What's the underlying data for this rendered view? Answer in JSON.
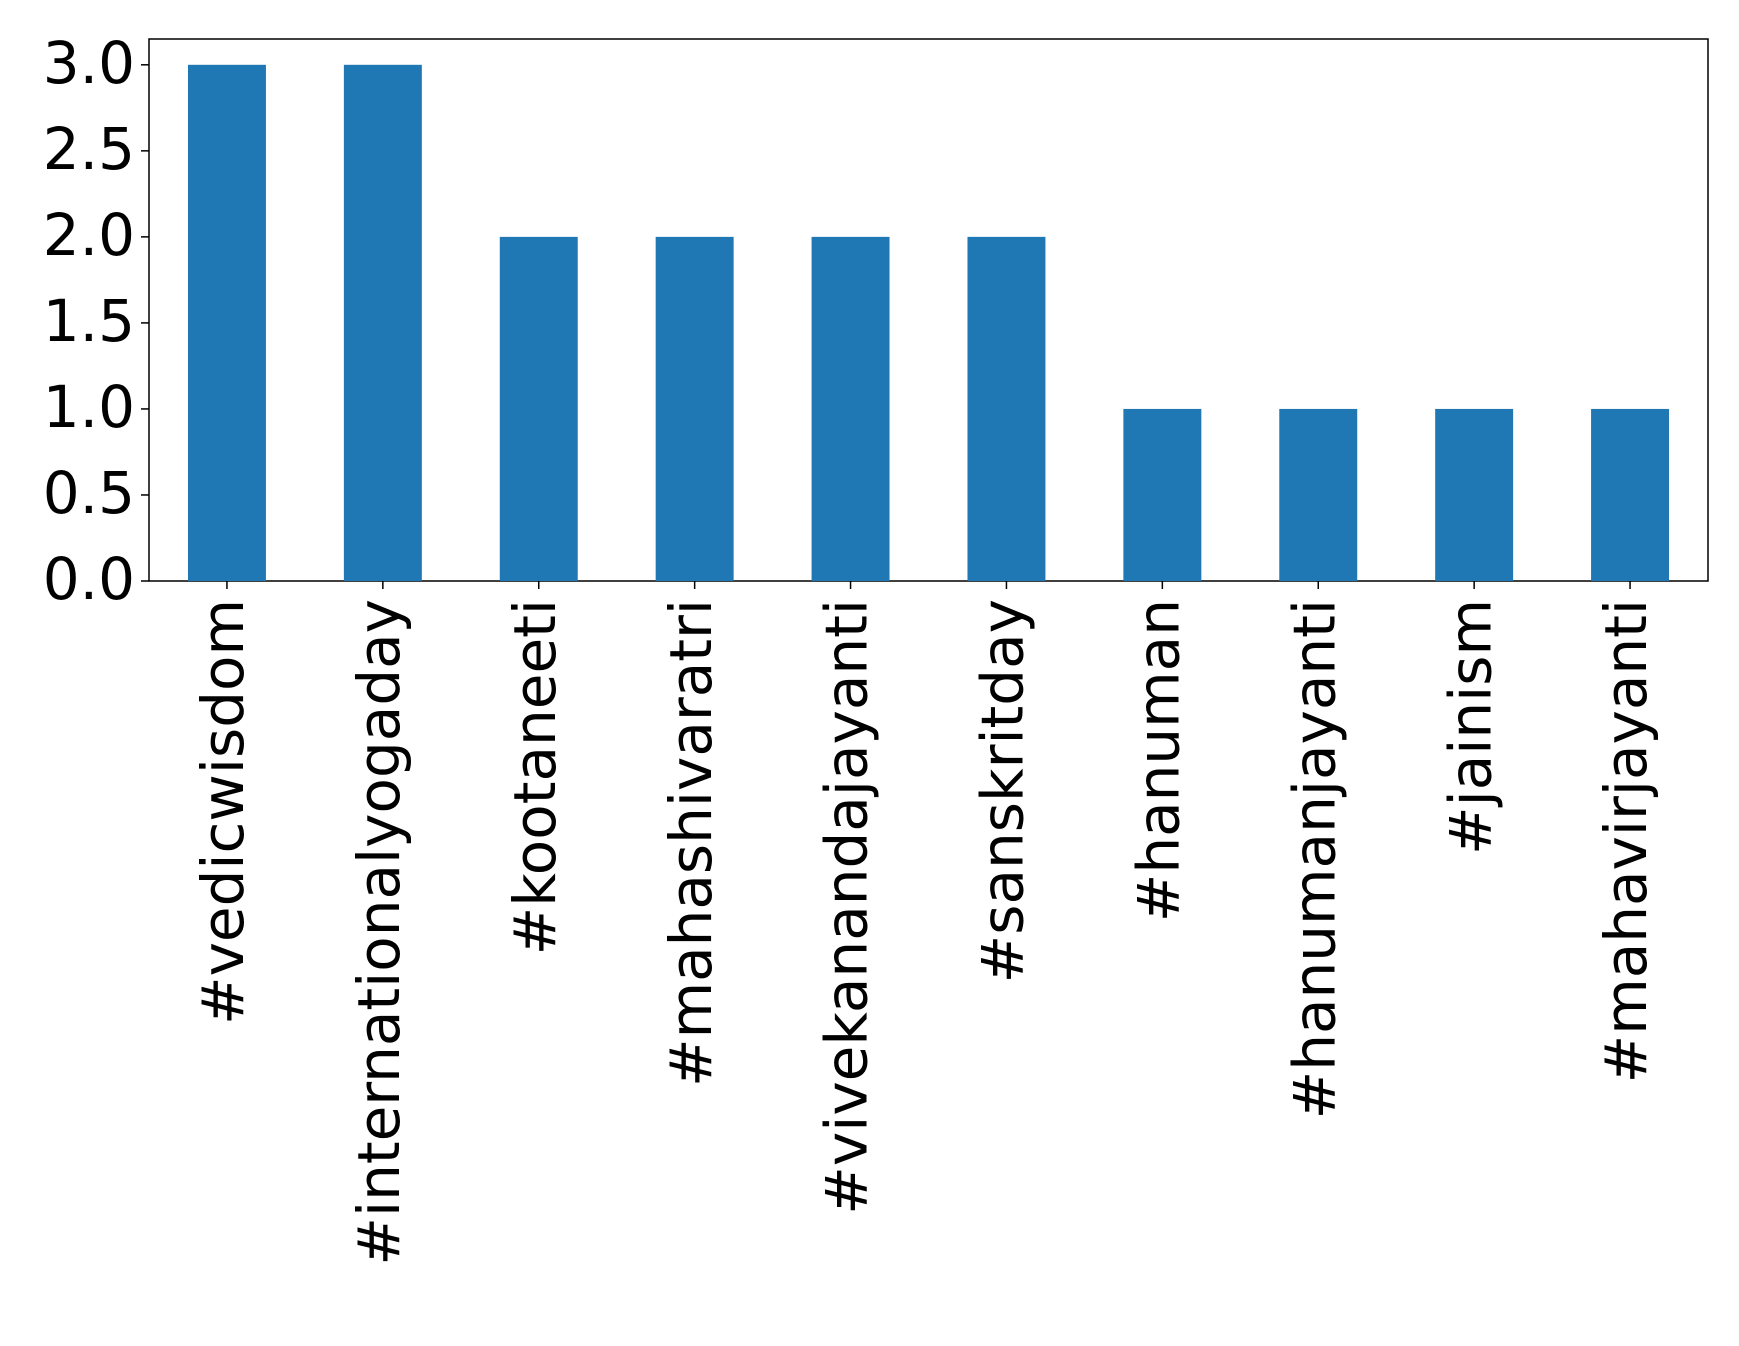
{
  "chart_data": {
    "type": "bar",
    "categories": [
      "#vedicwisdom",
      "#internationalyogaday",
      "#kootaneeti",
      "#mahashivaratri",
      "#vivekanandajayanti",
      "#sanskritday",
      "#hanuman",
      "#hanumanjayanti",
      "#jainism",
      "#mahavirjayanti"
    ],
    "values": [
      3,
      3,
      2,
      2,
      2,
      2,
      1,
      1,
      1,
      1
    ],
    "color": "#1f77b4",
    "ylim": [
      0,
      3.15
    ],
    "yticks": [
      {
        "value": 0,
        "label": "0.0"
      },
      {
        "value": 0.5,
        "label": "0.5"
      },
      {
        "value": 1,
        "label": "1.0"
      },
      {
        "value": 1.5,
        "label": "1.5"
      },
      {
        "value": 2,
        "label": "2.0"
      },
      {
        "value": 2.5,
        "label": "2.5"
      },
      {
        "value": 3,
        "label": "3.0"
      }
    ],
    "grid": false
  }
}
